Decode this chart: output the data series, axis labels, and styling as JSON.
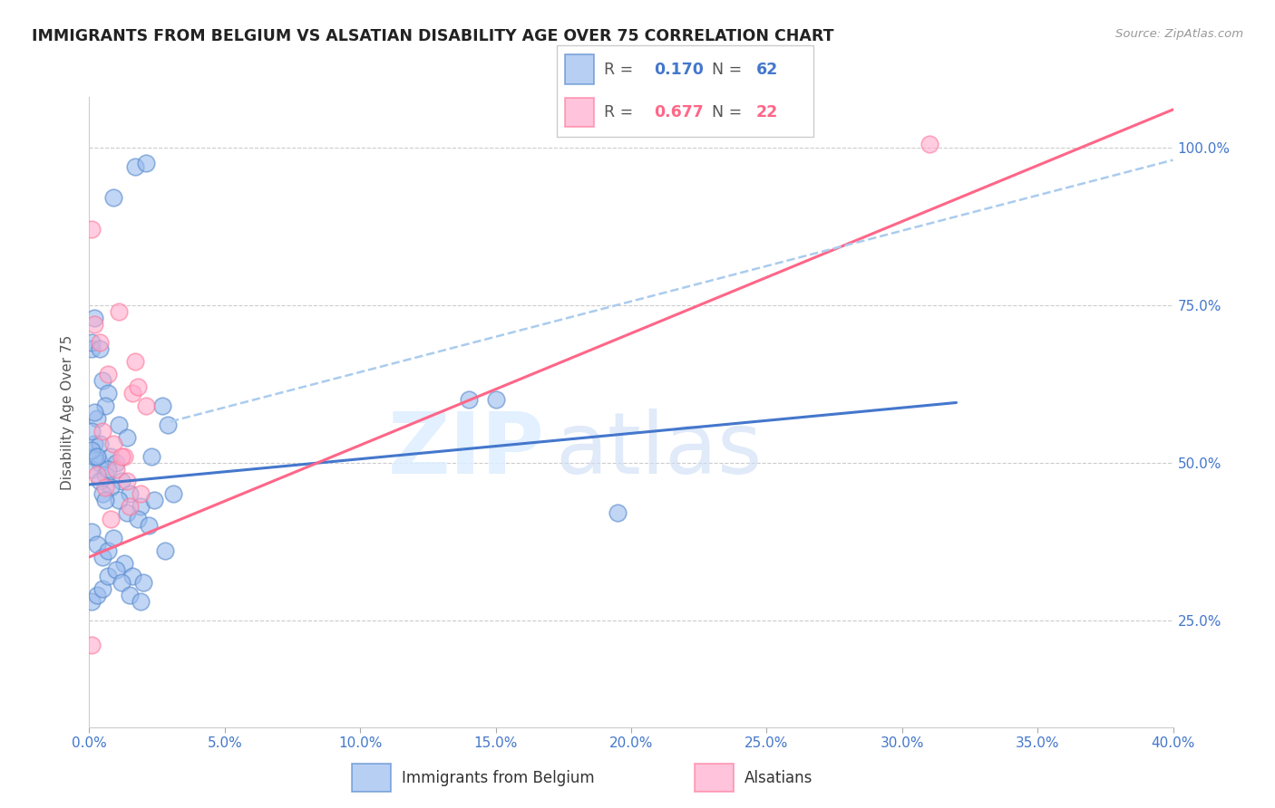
{
  "title": "IMMIGRANTS FROM BELGIUM VS ALSATIAN DISABILITY AGE OVER 75 CORRELATION CHART",
  "source": "Source: ZipAtlas.com",
  "ylabel": "Disability Age Over 75",
  "ytick_labels": [
    "25.0%",
    "50.0%",
    "75.0%",
    "100.0%"
  ],
  "ytick_values": [
    0.25,
    0.5,
    0.75,
    1.0
  ],
  "xlim": [
    0.0,
    0.4
  ],
  "ylim": [
    0.08,
    1.08
  ],
  "blue_R": 0.17,
  "blue_N": 62,
  "pink_R": 0.677,
  "pink_N": 22,
  "blue_color": "#99BBEE",
  "pink_color": "#FFAACC",
  "blue_edge_color": "#5588CC",
  "pink_edge_color": "#FF7799",
  "blue_line_color": "#4477CC",
  "pink_line_color": "#FF6688",
  "dashed_line_color": "#AACCEE",
  "legend_label_blue": "Immigrants from Belgium",
  "legend_label_pink": "Alsatians",
  "blue_scatter_x": [
    0.004,
    0.009,
    0.001,
    0.017,
    0.021,
    0.001,
    0.002,
    0.003,
    0.005,
    0.007,
    0.011,
    0.014,
    0.002,
    0.004,
    0.006,
    0.008,
    0.01,
    0.012,
    0.015,
    0.019,
    0.001,
    0.003,
    0.005,
    0.007,
    0.009,
    0.013,
    0.016,
    0.02,
    0.024,
    0.029,
    0.001,
    0.002,
    0.004,
    0.006,
    0.008,
    0.011,
    0.014,
    0.018,
    0.022,
    0.027,
    0.001,
    0.003,
    0.005,
    0.007,
    0.01,
    0.012,
    0.015,
    0.019,
    0.023,
    0.028,
    0.001,
    0.001,
    0.002,
    0.003,
    0.004,
    0.005,
    0.006,
    0.007,
    0.15,
    0.195,
    0.031,
    0.14
  ],
  "blue_scatter_y": [
    0.5,
    0.92,
    0.68,
    0.97,
    0.975,
    0.69,
    0.53,
    0.57,
    0.63,
    0.61,
    0.56,
    0.54,
    0.73,
    0.68,
    0.59,
    0.51,
    0.5,
    0.47,
    0.45,
    0.43,
    0.39,
    0.37,
    0.35,
    0.36,
    0.38,
    0.34,
    0.32,
    0.31,
    0.44,
    0.56,
    0.49,
    0.51,
    0.53,
    0.48,
    0.46,
    0.44,
    0.42,
    0.41,
    0.4,
    0.59,
    0.28,
    0.29,
    0.3,
    0.32,
    0.33,
    0.31,
    0.29,
    0.28,
    0.51,
    0.36,
    0.52,
    0.55,
    0.58,
    0.51,
    0.47,
    0.45,
    0.44,
    0.49,
    0.6,
    0.42,
    0.45,
    0.6
  ],
  "pink_scatter_x": [
    0.002,
    0.011,
    0.017,
    0.004,
    0.007,
    0.021,
    0.005,
    0.009,
    0.013,
    0.003,
    0.006,
    0.015,
    0.001,
    0.008,
    0.019,
    0.01,
    0.014,
    0.016,
    0.012,
    0.018,
    0.31,
    0.001
  ],
  "pink_scatter_y": [
    0.72,
    0.74,
    0.66,
    0.69,
    0.64,
    0.59,
    0.55,
    0.53,
    0.51,
    0.48,
    0.46,
    0.43,
    0.21,
    0.41,
    0.45,
    0.49,
    0.47,
    0.61,
    0.51,
    0.62,
    1.005,
    0.87
  ],
  "blue_trend_x": [
    0.0,
    0.32
  ],
  "blue_trend_y": [
    0.465,
    0.595
  ],
  "pink_trend_x": [
    0.0,
    0.4
  ],
  "pink_trend_y": [
    0.35,
    1.06
  ],
  "dashed_trend_x": [
    0.03,
    0.4
  ],
  "dashed_trend_y": [
    0.565,
    0.98
  ]
}
